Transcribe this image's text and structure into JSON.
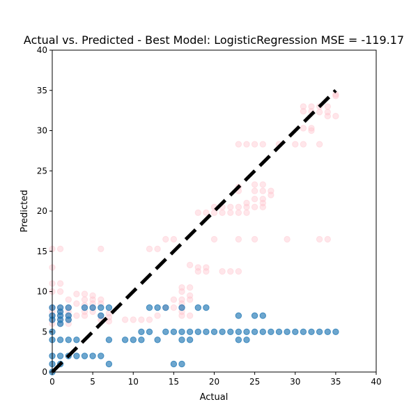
{
  "chart_data": {
    "type": "scatter",
    "title": "Actual vs. Predicted - Best Model: LogisticRegression MSE = -119.17",
    "xlabel": "Actual",
    "ylabel": "Predicted",
    "xlim": [
      0,
      40
    ],
    "ylim": [
      0,
      40
    ],
    "xticks": [
      "0",
      "5",
      "10",
      "15",
      "20",
      "25",
      "30",
      "35",
      "40"
    ],
    "yticks": [
      "0",
      "5",
      "10",
      "15",
      "20",
      "25",
      "30",
      "35",
      "40"
    ],
    "grid": false,
    "legend": "none",
    "reference_line": {
      "style": "dashed",
      "color": "#000000",
      "x": [
        0,
        35
      ],
      "y": [
        0,
        35
      ]
    },
    "series": [
      {
        "color": "#ffc0cb",
        "points": [
          [
            0,
            13
          ],
          [
            0,
            11
          ],
          [
            0,
            10
          ],
          [
            0,
            8
          ],
          [
            0,
            7.5
          ],
          [
            0,
            7
          ],
          [
            0,
            6.5
          ],
          [
            0,
            6
          ],
          [
            0,
            15.3
          ],
          [
            1,
            15.3
          ],
          [
            1,
            11
          ],
          [
            1,
            10
          ],
          [
            1,
            8
          ],
          [
            1,
            7.5
          ],
          [
            1,
            7
          ],
          [
            1,
            6.5
          ],
          [
            1,
            6
          ],
          [
            2,
            9
          ],
          [
            2,
            8
          ],
          [
            2,
            7.5
          ],
          [
            2,
            7
          ],
          [
            2,
            6.5
          ],
          [
            2,
            6
          ],
          [
            3,
            9.7
          ],
          [
            3,
            8.5
          ],
          [
            3,
            7
          ],
          [
            4,
            9.7
          ],
          [
            4,
            9
          ],
          [
            4,
            8.3
          ],
          [
            4,
            7.5
          ],
          [
            4,
            7
          ],
          [
            5,
            9.5
          ],
          [
            5,
            9
          ],
          [
            5,
            8.5
          ],
          [
            5,
            8
          ],
          [
            5,
            7.5
          ],
          [
            6,
            15.3
          ],
          [
            6,
            9
          ],
          [
            6,
            8.5
          ],
          [
            6,
            7
          ],
          [
            6,
            6.5
          ],
          [
            7,
            7.3
          ],
          [
            7,
            6.8
          ],
          [
            7,
            6.3
          ],
          [
            9,
            6.5
          ],
          [
            10,
            6.5
          ],
          [
            11,
            6.5
          ],
          [
            12,
            15.3
          ],
          [
            12,
            6.5
          ],
          [
            13,
            15.3
          ],
          [
            13,
            7
          ],
          [
            14,
            8
          ],
          [
            14,
            16.5
          ],
          [
            15,
            16.5
          ],
          [
            15,
            9
          ],
          [
            15,
            8
          ],
          [
            16,
            10.5
          ],
          [
            16,
            10
          ],
          [
            16,
            9
          ],
          [
            16,
            8.5
          ],
          [
            16,
            8
          ],
          [
            16,
            7.5
          ],
          [
            16,
            7
          ],
          [
            17,
            13.3
          ],
          [
            17,
            10.5
          ],
          [
            17,
            9.5
          ],
          [
            17,
            9
          ],
          [
            17,
            7
          ],
          [
            18,
            19.8
          ],
          [
            18,
            13
          ],
          [
            18,
            12.5
          ],
          [
            19,
            19.8
          ],
          [
            19,
            13
          ],
          [
            19,
            12.5
          ],
          [
            20,
            20.5
          ],
          [
            20,
            19.8
          ],
          [
            20,
            16.5
          ],
          [
            21,
            20.5
          ],
          [
            21,
            19.8
          ],
          [
            21,
            12.5
          ],
          [
            22,
            20.5
          ],
          [
            22,
            19.8
          ],
          [
            22,
            12.5
          ],
          [
            23,
            28.3
          ],
          [
            23,
            23
          ],
          [
            23,
            22.5
          ],
          [
            23,
            20.5
          ],
          [
            23,
            19.8
          ],
          [
            23,
            16.5
          ],
          [
            23,
            12.5
          ],
          [
            24,
            28.3
          ],
          [
            24,
            21
          ],
          [
            24,
            20.5
          ],
          [
            24,
            19.8
          ],
          [
            25,
            28.3
          ],
          [
            25,
            23.3
          ],
          [
            25,
            22.5
          ],
          [
            25,
            21.5
          ],
          [
            25,
            20.5
          ],
          [
            25,
            16.5
          ],
          [
            26,
            28.3
          ],
          [
            26,
            23.3
          ],
          [
            26,
            22.5
          ],
          [
            26,
            21.5
          ],
          [
            26,
            21
          ],
          [
            26,
            20.5
          ],
          [
            27,
            22.5
          ],
          [
            27,
            22
          ],
          [
            28,
            28.3
          ],
          [
            29,
            16.5
          ],
          [
            30,
            28.3
          ],
          [
            31,
            33
          ],
          [
            31,
            32.4
          ],
          [
            31,
            28.3
          ],
          [
            31,
            30.3
          ],
          [
            32,
            33
          ],
          [
            32,
            32.4
          ],
          [
            32,
            30.3
          ],
          [
            32,
            30
          ],
          [
            33,
            33
          ],
          [
            33,
            32.3
          ],
          [
            33,
            28.3
          ],
          [
            33,
            16.5
          ],
          [
            34,
            33
          ],
          [
            34,
            32.3
          ],
          [
            34,
            31.8
          ],
          [
            34,
            16.5
          ],
          [
            35,
            34.5
          ],
          [
            35,
            34.3
          ],
          [
            35,
            31.8
          ]
        ]
      },
      {
        "color": "#1f77b4",
        "points": [
          [
            0,
            8
          ],
          [
            0,
            7
          ],
          [
            0,
            6.5
          ],
          [
            0,
            5
          ],
          [
            0,
            4
          ],
          [
            0,
            2
          ],
          [
            0,
            1
          ],
          [
            0,
            0
          ],
          [
            1,
            8
          ],
          [
            1,
            7.5
          ],
          [
            1,
            7
          ],
          [
            1,
            6.5
          ],
          [
            1,
            6
          ],
          [
            1,
            4
          ],
          [
            1,
            2
          ],
          [
            1,
            1
          ],
          [
            2,
            8
          ],
          [
            2,
            7
          ],
          [
            2,
            6.5
          ],
          [
            2,
            4
          ],
          [
            2,
            2
          ],
          [
            3,
            4
          ],
          [
            3,
            2
          ],
          [
            4,
            8
          ],
          [
            4,
            2
          ],
          [
            5,
            8
          ],
          [
            5,
            2
          ],
          [
            6,
            8
          ],
          [
            6,
            7
          ],
          [
            6,
            2
          ],
          [
            7,
            8
          ],
          [
            7,
            4
          ],
          [
            7,
            1
          ],
          [
            9,
            4
          ],
          [
            10,
            4
          ],
          [
            11,
            5
          ],
          [
            11,
            4
          ],
          [
            12,
            8
          ],
          [
            12,
            5
          ],
          [
            13,
            8
          ],
          [
            13,
            4
          ],
          [
            14,
            8
          ],
          [
            14,
            5
          ],
          [
            15,
            5
          ],
          [
            15,
            1
          ],
          [
            16,
            8
          ],
          [
            16,
            5
          ],
          [
            16,
            4
          ],
          [
            16,
            1
          ],
          [
            17,
            5
          ],
          [
            17,
            4
          ],
          [
            18,
            8
          ],
          [
            18,
            5
          ],
          [
            19,
            8
          ],
          [
            19,
            5
          ],
          [
            20,
            5
          ],
          [
            21,
            5
          ],
          [
            22,
            5
          ],
          [
            23,
            7
          ],
          [
            23,
            5
          ],
          [
            23,
            4
          ],
          [
            24,
            5
          ],
          [
            24,
            4
          ],
          [
            25,
            7
          ],
          [
            25,
            5
          ],
          [
            26,
            7
          ],
          [
            26,
            5
          ],
          [
            27,
            5
          ],
          [
            28,
            5
          ],
          [
            29,
            5
          ],
          [
            30,
            5
          ],
          [
            31,
            5
          ],
          [
            32,
            5
          ],
          [
            33,
            5
          ],
          [
            34,
            5
          ],
          [
            35,
            5
          ]
        ]
      }
    ]
  }
}
